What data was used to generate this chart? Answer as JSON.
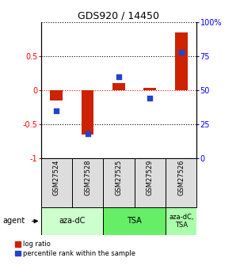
{
  "title": "GDS920 / 14450",
  "samples": [
    "GSM27524",
    "GSM27528",
    "GSM27525",
    "GSM27529",
    "GSM27526"
  ],
  "log_ratio": [
    -0.15,
    -0.65,
    0.1,
    0.03,
    0.85
  ],
  "percentile_rank": [
    35,
    18,
    60,
    44,
    78
  ],
  "ylim_left": [
    -1.0,
    1.0
  ],
  "ylim_right": [
    0,
    100
  ],
  "yticks_left": [
    -1.0,
    -0.5,
    0.0,
    0.5
  ],
  "yticks_right": [
    0,
    25,
    50,
    75,
    100
  ],
  "bar_color": "#cc2200",
  "dot_color": "#2244cc",
  "bar_width": 0.4,
  "dot_size": 25,
  "group_colors": [
    "#ccffcc",
    "#66ee66",
    "#aaffaa"
  ],
  "group_labels": [
    "aza-dC",
    "TSA",
    "aza-dC,\nTSA"
  ],
  "group_ranges": [
    [
      0,
      1
    ],
    [
      2,
      3
    ],
    [
      4,
      4
    ]
  ],
  "legend_red": "log ratio",
  "legend_blue": "percentile rank within the sample"
}
